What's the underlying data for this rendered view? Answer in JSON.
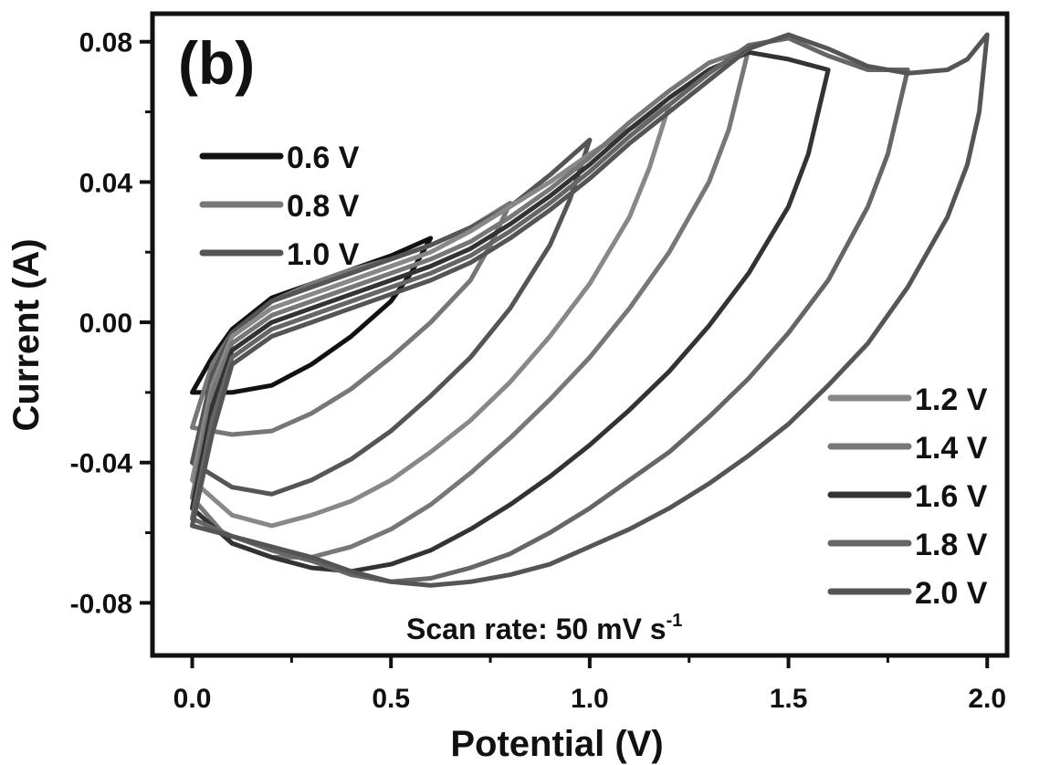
{
  "chart_data": {
    "type": "line",
    "panel_label": "(b)",
    "xlabel": "Potential (V)",
    "ylabel": "Current (A)",
    "xlim": [
      -0.1,
      2.05
    ],
    "ylim": [
      -0.095,
      0.088
    ],
    "xticks": [
      0.0,
      0.5,
      1.0,
      1.5,
      2.0
    ],
    "xtick_labels": [
      "0.0",
      "0.5",
      "1.0",
      "1.5",
      "2.0"
    ],
    "yticks": [
      -0.08,
      -0.04,
      0.0,
      0.04,
      0.08
    ],
    "ytick_labels": [
      "-0.08",
      "-0.04",
      "0.00",
      "0.04",
      "0.08"
    ],
    "annotation": {
      "text": "Scan rate: 50 mV s",
      "sup": "-1"
    },
    "legend_left": [
      "0.6 V",
      "0.8 V",
      "1.0 V"
    ],
    "legend_right": [
      "1.2 V",
      "1.4 V",
      "1.6 V",
      "1.8 V",
      "2.0 V"
    ],
    "series": [
      {
        "name": "0.6 V",
        "vmax": 0.6,
        "color": "#111111",
        "upper": [
          [
            0.0,
            -0.02
          ],
          [
            0.05,
            -0.01
          ],
          [
            0.1,
            -0.002
          ],
          [
            0.2,
            0.007
          ],
          [
            0.3,
            0.011
          ],
          [
            0.4,
            0.015
          ],
          [
            0.5,
            0.019
          ],
          [
            0.6,
            0.024
          ]
        ],
        "lower": [
          [
            0.6,
            0.024
          ],
          [
            0.55,
            0.014
          ],
          [
            0.5,
            0.006
          ],
          [
            0.4,
            -0.004
          ],
          [
            0.3,
            -0.012
          ],
          [
            0.2,
            -0.018
          ],
          [
            0.1,
            -0.02
          ],
          [
            0.0,
            -0.02
          ]
        ]
      },
      {
        "name": "0.8 V",
        "vmax": 0.8,
        "color": "#777777",
        "upper": [
          [
            0.0,
            -0.03
          ],
          [
            0.05,
            -0.012
          ],
          [
            0.1,
            -0.003
          ],
          [
            0.2,
            0.006
          ],
          [
            0.3,
            0.011
          ],
          [
            0.4,
            0.015
          ],
          [
            0.5,
            0.018
          ],
          [
            0.6,
            0.022
          ],
          [
            0.7,
            0.027
          ],
          [
            0.8,
            0.034
          ]
        ],
        "lower": [
          [
            0.8,
            0.034
          ],
          [
            0.75,
            0.022
          ],
          [
            0.7,
            0.012
          ],
          [
            0.6,
            0.0
          ],
          [
            0.5,
            -0.01
          ],
          [
            0.4,
            -0.019
          ],
          [
            0.3,
            -0.026
          ],
          [
            0.2,
            -0.031
          ],
          [
            0.1,
            -0.032
          ],
          [
            0.0,
            -0.03
          ]
        ]
      },
      {
        "name": "1.0 V",
        "vmax": 1.0,
        "color": "#555555",
        "upper": [
          [
            0.0,
            -0.04
          ],
          [
            0.05,
            -0.015
          ],
          [
            0.1,
            -0.003
          ],
          [
            0.2,
            0.006
          ],
          [
            0.3,
            0.01
          ],
          [
            0.4,
            0.014
          ],
          [
            0.5,
            0.018
          ],
          [
            0.6,
            0.022
          ],
          [
            0.7,
            0.027
          ],
          [
            0.8,
            0.033
          ],
          [
            0.9,
            0.042
          ],
          [
            1.0,
            0.052
          ]
        ],
        "lower": [
          [
            1.0,
            0.052
          ],
          [
            0.95,
            0.035
          ],
          [
            0.9,
            0.022
          ],
          [
            0.8,
            0.004
          ],
          [
            0.7,
            -0.01
          ],
          [
            0.6,
            -0.021
          ],
          [
            0.5,
            -0.031
          ],
          [
            0.4,
            -0.039
          ],
          [
            0.3,
            -0.045
          ],
          [
            0.2,
            -0.049
          ],
          [
            0.1,
            -0.047
          ],
          [
            0.0,
            -0.04
          ]
        ]
      },
      {
        "name": "1.2 V",
        "vmax": 1.2,
        "color": "#888888",
        "upper": [
          [
            0.0,
            -0.045
          ],
          [
            0.05,
            -0.018
          ],
          [
            0.1,
            -0.004
          ],
          [
            0.2,
            0.004
          ],
          [
            0.3,
            0.008
          ],
          [
            0.4,
            0.012
          ],
          [
            0.5,
            0.016
          ],
          [
            0.6,
            0.02
          ],
          [
            0.7,
            0.026
          ],
          [
            0.8,
            0.033
          ],
          [
            0.9,
            0.04
          ],
          [
            1.0,
            0.048
          ],
          [
            1.1,
            0.055
          ],
          [
            1.2,
            0.062
          ]
        ],
        "lower": [
          [
            1.2,
            0.062
          ],
          [
            1.15,
            0.044
          ],
          [
            1.1,
            0.03
          ],
          [
            1.0,
            0.011
          ],
          [
            0.9,
            -0.004
          ],
          [
            0.8,
            -0.017
          ],
          [
            0.7,
            -0.028
          ],
          [
            0.6,
            -0.037
          ],
          [
            0.5,
            -0.045
          ],
          [
            0.4,
            -0.051
          ],
          [
            0.3,
            -0.055
          ],
          [
            0.2,
            -0.058
          ],
          [
            0.1,
            -0.055
          ],
          [
            0.0,
            -0.045
          ]
        ]
      },
      {
        "name": "1.4 V",
        "vmax": 1.4,
        "color": "#777777",
        "upper": [
          [
            0.0,
            -0.05
          ],
          [
            0.05,
            -0.02
          ],
          [
            0.1,
            -0.006
          ],
          [
            0.2,
            0.002
          ],
          [
            0.3,
            0.006
          ],
          [
            0.4,
            0.01
          ],
          [
            0.5,
            0.014
          ],
          [
            0.6,
            0.018
          ],
          [
            0.7,
            0.023
          ],
          [
            0.8,
            0.03
          ],
          [
            0.9,
            0.038
          ],
          [
            1.0,
            0.047
          ],
          [
            1.1,
            0.057
          ],
          [
            1.2,
            0.066
          ],
          [
            1.3,
            0.074
          ],
          [
            1.4,
            0.078
          ]
        ],
        "lower": [
          [
            1.4,
            0.078
          ],
          [
            1.35,
            0.055
          ],
          [
            1.3,
            0.04
          ],
          [
            1.2,
            0.02
          ],
          [
            1.1,
            0.004
          ],
          [
            1.0,
            -0.01
          ],
          [
            0.9,
            -0.022
          ],
          [
            0.8,
            -0.033
          ],
          [
            0.7,
            -0.043
          ],
          [
            0.6,
            -0.052
          ],
          [
            0.5,
            -0.059
          ],
          [
            0.4,
            -0.064
          ],
          [
            0.3,
            -0.067
          ],
          [
            0.2,
            -0.067
          ],
          [
            0.1,
            -0.063
          ],
          [
            0.0,
            -0.05
          ]
        ]
      },
      {
        "name": "1.6 V",
        "vmax": 1.6,
        "color": "#333333",
        "upper": [
          [
            0.0,
            -0.053
          ],
          [
            0.05,
            -0.024
          ],
          [
            0.1,
            -0.008
          ],
          [
            0.2,
            0.0
          ],
          [
            0.3,
            0.004
          ],
          [
            0.4,
            0.008
          ],
          [
            0.5,
            0.012
          ],
          [
            0.6,
            0.016
          ],
          [
            0.7,
            0.021
          ],
          [
            0.8,
            0.028
          ],
          [
            0.9,
            0.036
          ],
          [
            1.0,
            0.045
          ],
          [
            1.1,
            0.055
          ],
          [
            1.2,
            0.064
          ],
          [
            1.3,
            0.072
          ],
          [
            1.4,
            0.077
          ],
          [
            1.5,
            0.075
          ],
          [
            1.6,
            0.072
          ]
        ],
        "lower": [
          [
            1.6,
            0.072
          ],
          [
            1.55,
            0.048
          ],
          [
            1.5,
            0.033
          ],
          [
            1.4,
            0.014
          ],
          [
            1.3,
            -0.001
          ],
          [
            1.2,
            -0.014
          ],
          [
            1.1,
            -0.025
          ],
          [
            1.0,
            -0.035
          ],
          [
            0.9,
            -0.044
          ],
          [
            0.8,
            -0.052
          ],
          [
            0.7,
            -0.059
          ],
          [
            0.6,
            -0.065
          ],
          [
            0.5,
            -0.069
          ],
          [
            0.4,
            -0.071
          ],
          [
            0.3,
            -0.07
          ],
          [
            0.2,
            -0.067
          ],
          [
            0.1,
            -0.063
          ],
          [
            0.0,
            -0.053
          ]
        ]
      },
      {
        "name": "1.8 V",
        "vmax": 1.8,
        "color": "#666666",
        "upper": [
          [
            0.0,
            -0.056
          ],
          [
            0.05,
            -0.028
          ],
          [
            0.1,
            -0.01
          ],
          [
            0.2,
            -0.002
          ],
          [
            0.3,
            0.002
          ],
          [
            0.4,
            0.006
          ],
          [
            0.5,
            0.01
          ],
          [
            0.6,
            0.014
          ],
          [
            0.7,
            0.019
          ],
          [
            0.8,
            0.026
          ],
          [
            0.9,
            0.034
          ],
          [
            1.0,
            0.043
          ],
          [
            1.1,
            0.053
          ],
          [
            1.2,
            0.062
          ],
          [
            1.3,
            0.071
          ],
          [
            1.4,
            0.079
          ],
          [
            1.5,
            0.081
          ],
          [
            1.6,
            0.076
          ],
          [
            1.7,
            0.072
          ],
          [
            1.8,
            0.072
          ]
        ],
        "lower": [
          [
            1.8,
            0.072
          ],
          [
            1.75,
            0.048
          ],
          [
            1.7,
            0.033
          ],
          [
            1.6,
            0.012
          ],
          [
            1.5,
            -0.003
          ],
          [
            1.4,
            -0.016
          ],
          [
            1.3,
            -0.027
          ],
          [
            1.2,
            -0.037
          ],
          [
            1.1,
            -0.045
          ],
          [
            1.0,
            -0.053
          ],
          [
            0.9,
            -0.06
          ],
          [
            0.8,
            -0.066
          ],
          [
            0.7,
            -0.07
          ],
          [
            0.6,
            -0.073
          ],
          [
            0.5,
            -0.074
          ],
          [
            0.4,
            -0.072
          ],
          [
            0.3,
            -0.068
          ],
          [
            0.2,
            -0.065
          ],
          [
            0.1,
            -0.061
          ],
          [
            0.0,
            -0.056
          ]
        ]
      },
      {
        "name": "2.0 V",
        "vmax": 2.0,
        "color": "#555555",
        "upper": [
          [
            0.0,
            -0.058
          ],
          [
            0.05,
            -0.032
          ],
          [
            0.1,
            -0.012
          ],
          [
            0.2,
            -0.004
          ],
          [
            0.3,
            0.0
          ],
          [
            0.4,
            0.004
          ],
          [
            0.5,
            0.008
          ],
          [
            0.6,
            0.012
          ],
          [
            0.7,
            0.017
          ],
          [
            0.8,
            0.024
          ],
          [
            0.9,
            0.032
          ],
          [
            1.0,
            0.041
          ],
          [
            1.1,
            0.051
          ],
          [
            1.2,
            0.06
          ],
          [
            1.3,
            0.069
          ],
          [
            1.4,
            0.078
          ],
          [
            1.5,
            0.082
          ],
          [
            1.6,
            0.078
          ],
          [
            1.7,
            0.073
          ],
          [
            1.8,
            0.071
          ],
          [
            1.9,
            0.072
          ],
          [
            1.95,
            0.075
          ],
          [
            2.0,
            0.082
          ]
        ],
        "lower": [
          [
            2.0,
            0.082
          ],
          [
            1.98,
            0.06
          ],
          [
            1.95,
            0.045
          ],
          [
            1.9,
            0.03
          ],
          [
            1.8,
            0.01
          ],
          [
            1.7,
            -0.006
          ],
          [
            1.6,
            -0.018
          ],
          [
            1.5,
            -0.029
          ],
          [
            1.4,
            -0.038
          ],
          [
            1.3,
            -0.046
          ],
          [
            1.2,
            -0.053
          ],
          [
            1.1,
            -0.059
          ],
          [
            1.0,
            -0.064
          ],
          [
            0.9,
            -0.069
          ],
          [
            0.8,
            -0.072
          ],
          [
            0.7,
            -0.074
          ],
          [
            0.6,
            -0.075
          ],
          [
            0.5,
            -0.074
          ],
          [
            0.4,
            -0.071
          ],
          [
            0.3,
            -0.067
          ],
          [
            0.2,
            -0.064
          ],
          [
            0.1,
            -0.061
          ],
          [
            0.0,
            -0.058
          ]
        ]
      }
    ]
  }
}
